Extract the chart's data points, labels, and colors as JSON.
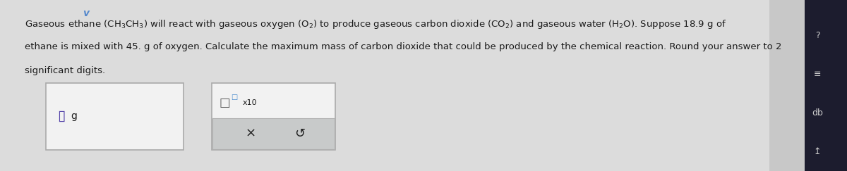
{
  "bg_color_main": "#dcdcdc",
  "bg_color_sidebar_strip": "#c8c8c8",
  "bg_color_dark": "#1c1c2e",
  "text_color": "#1a1a1a",
  "box_face": "#f2f2f2",
  "box_edge": "#aaaaaa",
  "btn_face": "#c8caca",
  "btn_edge": "#b0b0b0",
  "line1": "Gaseous ethane $\\left(\\mathregular{CH_3CH_3}\\right)$ will react with gaseous oxygen $\\left(\\mathregular{O_2}\\right)$ to produce gaseous carbon dioxide $\\left(\\mathregular{CO_2}\\right)$ and gaseous water $\\left(\\mathregular{H_2O}\\right)$. Suppose 18.9 g of",
  "line2": "ethane is mixed with 45. g of oxygen. Calculate the maximum mass of carbon dioxide that could be produced by the chemical reaction. Round your answer to 2",
  "line3": "significant digits.",
  "chevron": "v",
  "chevron_color": "#5588cc",
  "g_label": "g",
  "x_symbol": "×",
  "undo_symbol": "↺",
  "x10_text": "x10",
  "sidebar_q": "?",
  "sidebar_lines": "≡",
  "sidebar_bar": "db",
  "sidebar_arrow": "↥",
  "sidebar_color": "#cccccc"
}
